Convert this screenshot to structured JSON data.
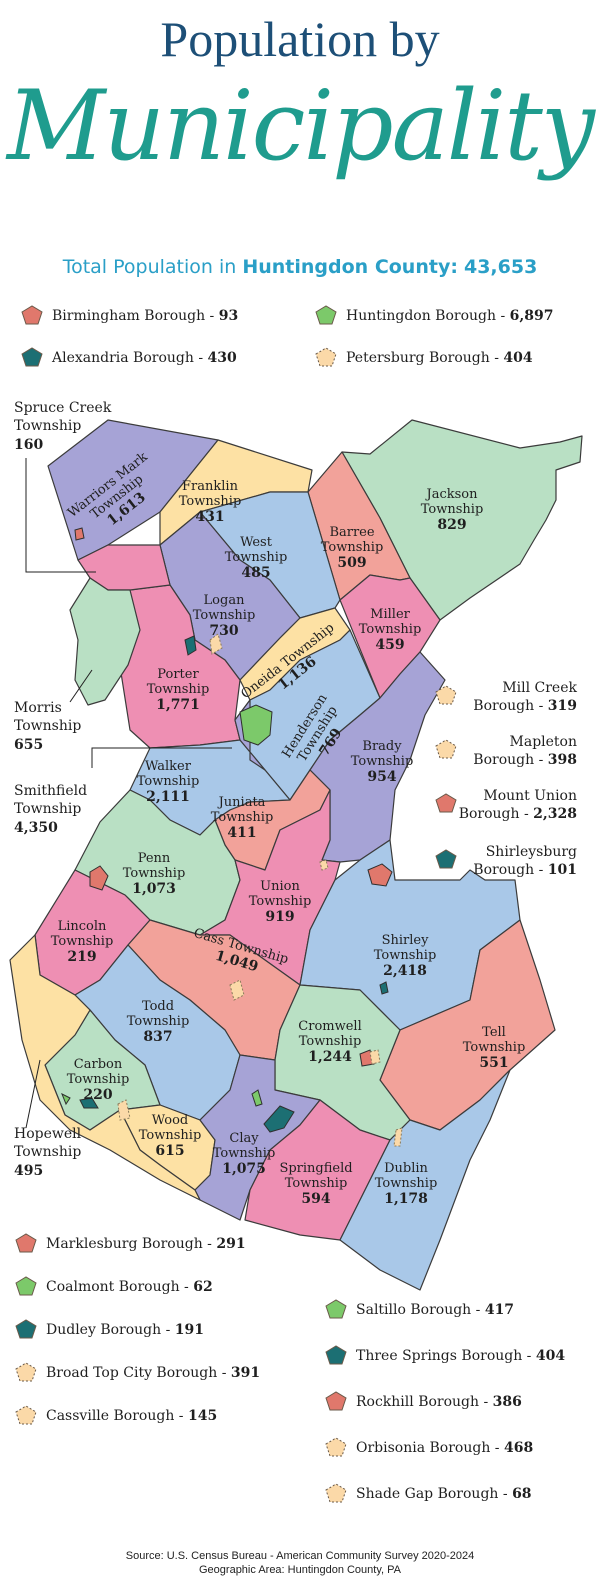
{
  "header": {
    "title_line1": "Population by",
    "title_line2": "Municipality",
    "total_prefix": "Total Population in",
    "county": "Huntingdon County:",
    "total": "43,653"
  },
  "colors": {
    "blue": "#a9c8e8",
    "purple": "#a6a3d6",
    "green": "#b9e0c4",
    "salmon": "#f2a29a",
    "pink": "#ee8fb3",
    "yellow": "#fde1a4",
    "title": "#1d4f77",
    "accent": "#1f9c8e",
    "total_text": "#2a9fc7"
  },
  "top_boroughs": [
    {
      "name": "Birmingham Borough - ",
      "value": "93",
      "color": "#e0786c",
      "icon": "red-borough-shape-icon"
    },
    {
      "name": "Huntingdon Borough - ",
      "value": "6,897",
      "color": "#7cc96a",
      "icon": "green-borough-shape-icon"
    },
    {
      "name": "Alexandria Borough - ",
      "value": "430",
      "color": "#1c6f73",
      "icon": "teal-borough-shape-icon"
    },
    {
      "name": "Petersburg Borough - ",
      "value": "404",
      "color": "#fbd9a8",
      "icon": "peach-dotted-borough-shape-icon"
    }
  ],
  "side_boroughs": [
    {
      "name": "Mill Creek",
      "name2": "Borough - ",
      "value": "319",
      "color": "#fbd9a8"
    },
    {
      "name": "Mapleton",
      "name2": "Borough - ",
      "value": "398",
      "color": "#fbd9a8"
    },
    {
      "name": "Mount Union",
      "name2": "Borough - ",
      "value": "2,328",
      "color": "#e0786c"
    },
    {
      "name": "Shirleysburg",
      "name2": "Borough - ",
      "value": "101",
      "color": "#1c6f73"
    }
  ],
  "bottom_left": [
    {
      "name": "Marklesburg Borough - ",
      "value": "291",
      "color": "#e0786c"
    },
    {
      "name": "Coalmont Borough - ",
      "value": "62",
      "color": "#7cc96a"
    },
    {
      "name": "Dudley Borough - ",
      "value": "191",
      "color": "#1c6f73"
    },
    {
      "name": "Broad Top City Borough - ",
      "value": "391",
      "color": "#fbd9a8"
    },
    {
      "name": "Cassville Borough - ",
      "value": "145",
      "color": "#fbd9a8"
    }
  ],
  "bottom_right": [
    {
      "name": "Saltillo Borough - ",
      "value": "417",
      "color": "#7cc96a"
    },
    {
      "name": "Three Springs Borough - ",
      "value": "404",
      "color": "#1c6f73"
    },
    {
      "name": "Rockhill Borough - ",
      "value": "386",
      "color": "#e0786c"
    },
    {
      "name": "Orbisonia Borough - ",
      "value": "468",
      "color": "#fbd9a8"
    },
    {
      "name": "Shade Gap Borough - ",
      "value": "68",
      "color": "#fbd9a8"
    }
  ],
  "townships": [
    {
      "l1": "Warriors Mark",
      "l2": "Township",
      "v": "1,613"
    },
    {
      "l1": "Franklin",
      "l2": "Township",
      "v": "431"
    },
    {
      "l1": "Jackson",
      "l2": "Township",
      "v": "829"
    },
    {
      "l1": "West",
      "l2": "Township",
      "v": "485"
    },
    {
      "l1": "Barree",
      "l2": "Township",
      "v": "509"
    },
    {
      "l1": "Logan",
      "l2": "Township",
      "v": "730"
    },
    {
      "l1": "Miller",
      "l2": "Township",
      "v": "459"
    },
    {
      "l1": "Porter",
      "l2": "Township",
      "v": "1,771"
    },
    {
      "l1": "Oneida Township",
      "l2": "",
      "v": "1,136"
    },
    {
      "l1": "Henderson",
      "l2": "Township",
      "v": "769"
    },
    {
      "l1": "Brady",
      "l2": "Township",
      "v": "954"
    },
    {
      "l1": "Walker",
      "l2": "Township",
      "v": "2,111"
    },
    {
      "l1": "Juniata",
      "l2": "Township",
      "v": "411"
    },
    {
      "l1": "Penn",
      "l2": "Township",
      "v": "1,073"
    },
    {
      "l1": "Union",
      "l2": "Township",
      "v": "919"
    },
    {
      "l1": "Lincoln",
      "l2": "Township",
      "v": "219"
    },
    {
      "l1": "Shirley",
      "l2": "Township",
      "v": "2,418"
    },
    {
      "l1": "Cass Township",
      "l2": "",
      "v": "1,049"
    },
    {
      "l1": "Todd",
      "l2": "Township",
      "v": "837"
    },
    {
      "l1": "Cromwell",
      "l2": "Township",
      "v": "1,244"
    },
    {
      "l1": "Tell",
      "l2": "Township",
      "v": "551"
    },
    {
      "l1": "Carbon",
      "l2": "Township",
      "v": "220"
    },
    {
      "l1": "Wood",
      "l2": "Township",
      "v": "615"
    },
    {
      "l1": "Clay",
      "l2": "Township",
      "v": "1,075"
    },
    {
      "l1": "Springfield",
      "l2": "Township",
      "v": "594"
    },
    {
      "l1": "Dublin",
      "l2": "Township",
      "v": "1,178"
    }
  ],
  "external_labels": [
    {
      "l1": "Spruce Creek",
      "l2": "Township",
      "v": "160"
    },
    {
      "l1": "Morris",
      "l2": "Township",
      "v": "655"
    },
    {
      "l1": "Smithfield",
      "l2": "Township",
      "v": "4,350"
    },
    {
      "l1": "Hopewell",
      "l2": "Township",
      "v": "495"
    }
  ],
  "source": {
    "line1": "Source: U.S. Census Bureau - American Community Survey 2020-2024",
    "line2": "Geographic Area: Huntingdon County, PA"
  }
}
